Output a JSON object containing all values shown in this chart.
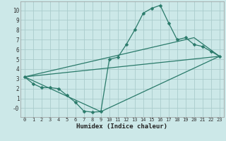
{
  "title": "",
  "xlabel": "Humidex (Indice chaleur)",
  "bg_color": "#cce8e8",
  "grid_color": "#aacccc",
  "line_color": "#2a7a6a",
  "xlim": [
    -0.5,
    23.5
  ],
  "ylim": [
    -0.9,
    10.9
  ],
  "xticks": [
    0,
    1,
    2,
    3,
    4,
    5,
    6,
    7,
    8,
    9,
    10,
    11,
    12,
    13,
    14,
    15,
    16,
    17,
    18,
    19,
    20,
    21,
    22,
    23
  ],
  "yticks": [
    0,
    1,
    2,
    3,
    4,
    5,
    6,
    7,
    8,
    9,
    10
  ],
  "ytick_labels": [
    "-0",
    "1",
    "2",
    "3",
    "4",
    "5",
    "6",
    "7",
    "8",
    "9",
    "10"
  ],
  "line1_x": [
    0,
    1,
    2,
    3,
    4,
    5,
    6,
    7,
    8,
    9,
    10,
    11,
    12,
    13,
    14,
    15,
    16,
    17,
    18,
    19,
    20,
    21,
    22,
    23
  ],
  "line1_y": [
    3.2,
    2.5,
    2.1,
    2.1,
    2.0,
    1.3,
    0.6,
    -0.3,
    -0.4,
    -0.35,
    5.0,
    5.2,
    6.5,
    8.0,
    9.7,
    10.2,
    10.5,
    8.7,
    7.0,
    7.2,
    6.5,
    6.3,
    5.8,
    5.3
  ],
  "line2_x": [
    0,
    20,
    23
  ],
  "line2_y": [
    3.2,
    7.2,
    5.3
  ],
  "line3_x": [
    0,
    23
  ],
  "line3_y": [
    3.2,
    5.3
  ],
  "line4_x": [
    0,
    9,
    23
  ],
  "line4_y": [
    3.2,
    -0.35,
    5.3
  ],
  "markersize": 2.5,
  "linewidth": 0.9
}
